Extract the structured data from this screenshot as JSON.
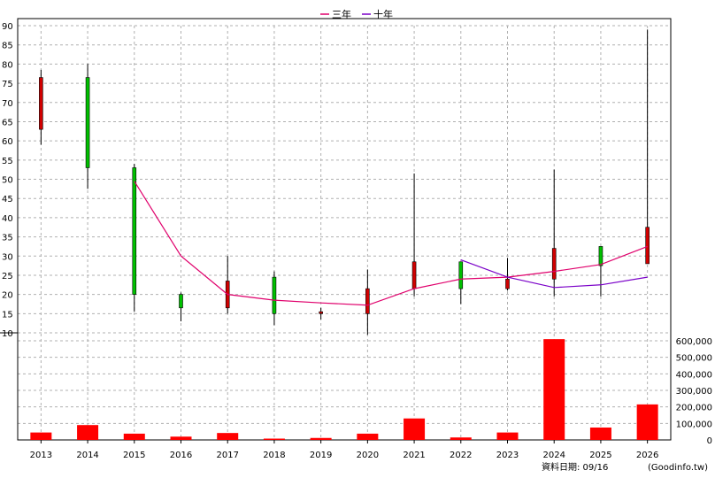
{
  "chart_data": [
    {
      "type": "candlestick",
      "title": "",
      "legend": [
        {
          "name": "三年",
          "color": "#e0006c"
        },
        {
          "name": "十年",
          "color": "#7a00c8"
        }
      ],
      "legend_placement": "top-center",
      "grid": true,
      "ylim": [
        10,
        90
      ],
      "y_ticks": [
        10,
        15,
        20,
        25,
        30,
        35,
        40,
        45,
        50,
        55,
        60,
        65,
        70,
        75,
        80,
        85,
        90
      ],
      "categories": [
        "2013",
        "2014",
        "2015",
        "2016",
        "2017",
        "2018",
        "2019",
        "2020",
        "2021",
        "2022",
        "2023",
        "2024",
        "2025",
        "2026"
      ],
      "ohlc": [
        {
          "x": "2013",
          "open": 76.5,
          "high": 78.5,
          "low": 59.0,
          "close": 63.0
        },
        {
          "x": "2014",
          "open": 53.0,
          "high": 80.0,
          "low": 47.5,
          "close": 76.5
        },
        {
          "x": "2015",
          "open": 20.0,
          "high": 54.0,
          "low": 15.5,
          "close": 53.0
        },
        {
          "x": "2016",
          "open": 16.5,
          "high": 20.5,
          "low": 13.0,
          "close": 20.0
        },
        {
          "x": "2017",
          "open": 23.5,
          "high": 30.0,
          "low": 15.0,
          "close": 16.5
        },
        {
          "x": "2018",
          "open": 15.0,
          "high": 26.0,
          "low": 12.0,
          "close": 24.5
        },
        {
          "x": "2019",
          "open": 15.5,
          "high": 16.5,
          "low": 13.5,
          "close": 15.0
        },
        {
          "x": "2020",
          "open": 21.5,
          "high": 26.5,
          "low": 9.5,
          "close": 15.0
        },
        {
          "x": "2021",
          "open": 28.5,
          "high": 51.5,
          "low": 19.5,
          "close": 21.5
        },
        {
          "x": "2022",
          "open": 21.5,
          "high": 28.5,
          "low": 17.5,
          "close": 28.5
        },
        {
          "x": "2023",
          "open": 24.0,
          "high": 29.5,
          "low": 21.0,
          "close": 21.5
        },
        {
          "x": "2024",
          "open": 32.0,
          "high": 52.5,
          "low": 19.5,
          "close": 24.0
        },
        {
          "x": "2025",
          "open": 27.5,
          "high": 32.5,
          "low": 19.5,
          "close": 32.5
        },
        {
          "x": "2026",
          "open": 37.5,
          "high": 89.0,
          "low": 28.0,
          "close": 28.0
        }
      ],
      "series": [
        {
          "name": "三年",
          "x": [
            "2015",
            "2016",
            "2017",
            "2018",
            "2019",
            "2020",
            "2021",
            "2022",
            "2023",
            "2024",
            "2025",
            "2026"
          ],
          "values": [
            49.5,
            30.0,
            20.0,
            18.5,
            17.8,
            17.2,
            21.5,
            24.0,
            24.5,
            26.0,
            27.8,
            32.5
          ]
        },
        {
          "name": "十年",
          "x": [
            "2022",
            "2023",
            "2024",
            "2025",
            "2026"
          ],
          "values": [
            29.0,
            24.5,
            21.8,
            22.5,
            24.5
          ]
        }
      ]
    },
    {
      "type": "bar",
      "categories": [
        "2013",
        "2014",
        "2015",
        "2016",
        "2017",
        "2018",
        "2019",
        "2020",
        "2021",
        "2022",
        "2023",
        "2024",
        "2025",
        "2026"
      ],
      "values": [
        45000,
        90000,
        38000,
        20000,
        42000,
        8000,
        12000,
        38000,
        130000,
        15000,
        45000,
        610000,
        75000,
        215000
      ],
      "ylim": [
        0,
        600000
      ],
      "y_ticks": [
        "0",
        "100,000",
        "200,000",
        "300,000",
        "400,000",
        "500,000",
        "600,000"
      ],
      "y_tick_values": [
        0,
        100000,
        200000,
        300000,
        400000,
        500000,
        600000
      ],
      "bar_color": "#ff0000"
    }
  ],
  "footer": {
    "date_text": "資料日期: 09/16",
    "source_text": "(Goodinfo.tw)"
  },
  "colors": {
    "up": "#00c000",
    "down": "#d00000",
    "three_year": "#e0006c",
    "ten_year": "#7a00c8",
    "grid": "#b0b0b0"
  }
}
